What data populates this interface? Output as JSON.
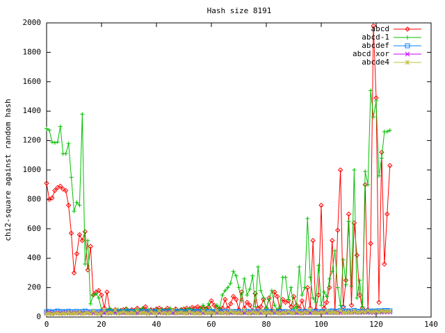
{
  "chart_data": {
    "type": "line",
    "title": "Hash size 8191",
    "y_label": "chi2-square against random hash",
    "xlim": [
      0,
      140
    ],
    "xticks": [
      0,
      20,
      40,
      60,
      80,
      100,
      120,
      140
    ],
    "ylim": [
      0,
      2000
    ],
    "yticks": [
      0,
      200,
      400,
      600,
      800,
      1000,
      1200,
      1400,
      1600,
      1800,
      2000
    ],
    "legend": "top-right",
    "x": [
      0,
      1,
      2,
      3,
      4,
      5,
      6,
      7,
      8,
      9,
      10,
      11,
      12,
      13,
      14,
      15,
      16,
      17,
      18,
      19,
      20,
      21,
      22,
      23,
      24,
      25,
      26,
      27,
      28,
      29,
      30,
      31,
      32,
      33,
      34,
      35,
      36,
      37,
      38,
      39,
      40,
      41,
      42,
      43,
      44,
      45,
      46,
      47,
      48,
      49,
      50,
      51,
      52,
      53,
      54,
      55,
      56,
      57,
      58,
      59,
      60,
      61,
      62,
      63,
      64,
      65,
      66,
      67,
      68,
      69,
      70,
      71,
      72,
      73,
      74,
      75,
      76,
      77,
      78,
      79,
      80,
      81,
      82,
      83,
      84,
      85,
      86,
      87,
      88,
      89,
      90,
      91,
      92,
      93,
      94,
      95,
      96,
      97,
      98,
      99,
      100,
      101,
      102,
      103,
      104,
      105,
      106,
      107,
      108,
      109,
      110,
      111,
      112,
      113,
      114,
      115,
      116,
      117,
      118,
      119,
      120,
      121,
      122,
      123,
      124,
      125
    ],
    "series": [
      {
        "name": "abcd",
        "color": "#ff0000",
        "marker": "diamond",
        "values": [
          910,
          800,
          810,
          860,
          880,
          890,
          870,
          860,
          760,
          570,
          300,
          430,
          560,
          520,
          580,
          320,
          480,
          150,
          170,
          180,
          150,
          60,
          170,
          50,
          40,
          50,
          40,
          45,
          50,
          55,
          40,
          50,
          45,
          60,
          45,
          55,
          70,
          40,
          50,
          45,
          55,
          60,
          50,
          45,
          60,
          50,
          45,
          55,
          40,
          50,
          55,
          60,
          50,
          65,
          60,
          70,
          60,
          65,
          55,
          70,
          110,
          80,
          60,
          55,
          60,
          120,
          60,
          90,
          140,
          120,
          50,
          170,
          60,
          100,
          80,
          40,
          160,
          60,
          70,
          120,
          60,
          130,
          40,
          170,
          140,
          50,
          120,
          100,
          110,
          70,
          140,
          80,
          60,
          110,
          40,
          200,
          60,
          520,
          50,
          150,
          760,
          60,
          100,
          200,
          520,
          40,
          590,
          1000,
          70,
          250,
          700,
          80,
          640,
          420,
          150,
          60,
          900,
          50,
          500,
          1980,
          1490,
          100,
          1120,
          360,
          700,
          1030
        ]
      },
      {
        "name": "abcd-1",
        "color": "#00c000",
        "marker": "plus",
        "values": [
          1280,
          1270,
          1190,
          1185,
          1190,
          1295,
          1110,
          1110,
          1180,
          950,
          720,
          780,
          760,
          1380,
          360,
          520,
          90,
          150,
          160,
          130,
          50,
          40,
          45,
          60,
          40,
          35,
          50,
          45,
          40,
          55,
          45,
          50,
          40,
          55,
          45,
          60,
          40,
          50,
          45,
          40,
          50,
          45,
          55,
          40,
          50,
          60,
          45,
          50,
          40,
          55,
          45,
          50,
          60,
          45,
          50,
          40,
          55,
          80,
          50,
          90,
          50,
          40,
          80,
          60,
          150,
          180,
          200,
          230,
          310,
          280,
          200,
          110,
          260,
          150,
          190,
          280,
          70,
          340,
          180,
          130,
          60,
          120,
          180,
          80,
          50,
          70,
          270,
          270,
          120,
          200,
          60,
          70,
          340,
          150,
          200,
          670,
          270,
          130,
          100,
          350,
          80,
          170,
          140,
          260,
          310,
          450,
          200,
          80,
          390,
          220,
          650,
          210,
          1000,
          130,
          250,
          70,
          990,
          900,
          1540,
          1360,
          1470,
          960,
          1080,
          1260,
          1260,
          1270
        ]
      },
      {
        "name": "abcdef",
        "color": "#0080ff",
        "marker": "square",
        "values": [
          35,
          38,
          32,
          36,
          40,
          34,
          37,
          33,
          39,
          35,
          36,
          38,
          34,
          37,
          40,
          35,
          33,
          38,
          36,
          34,
          37,
          35,
          39,
          33,
          36,
          38,
          34,
          37,
          35,
          36,
          39,
          34,
          37,
          33,
          38,
          36,
          35,
          37,
          34,
          39,
          36,
          35,
          38,
          34,
          37,
          36,
          33,
          38,
          35,
          37,
          34,
          36,
          39,
          35,
          37,
          33,
          38,
          36,
          34,
          37,
          35,
          38,
          36,
          33,
          37,
          39,
          34,
          36,
          38,
          35,
          37,
          34,
          36,
          39,
          33,
          37,
          35,
          38,
          34,
          36,
          37,
          35,
          39,
          34,
          36,
          38,
          33,
          37,
          35,
          36,
          38,
          34,
          37,
          35,
          39,
          36,
          34,
          38,
          35,
          37,
          36,
          40,
          35,
          38,
          42,
          36,
          39,
          44,
          60,
          38,
          41,
          37,
          45,
          39,
          36,
          40,
          38,
          42,
          37,
          41,
          39,
          43,
          40,
          45,
          44,
          42
        ]
      },
      {
        "name": "abcd xor",
        "color": "#c000ff",
        "marker": "cross",
        "values": [
          28,
          30,
          26,
          29,
          31,
          27,
          30,
          28,
          32,
          29,
          27,
          30,
          28,
          31,
          29,
          27,
          30,
          28,
          26,
          29,
          31,
          28,
          30,
          27,
          29,
          32,
          28,
          30,
          27,
          29,
          31,
          28,
          26,
          30,
          29,
          28,
          31,
          27,
          30,
          29,
          28,
          30,
          32,
          27,
          29,
          31,
          28,
          30,
          27,
          29,
          28,
          31,
          29,
          27,
          30,
          28,
          32,
          29,
          27,
          30,
          29,
          28,
          31,
          30,
          27,
          29,
          31,
          28,
          30,
          29,
          27,
          30,
          28,
          31,
          29,
          27,
          30,
          32,
          28,
          29,
          30,
          27,
          29,
          31,
          28,
          30,
          27,
          29,
          31,
          28,
          30,
          29,
          27,
          31,
          28,
          30,
          29,
          27,
          30,
          32,
          28,
          29,
          31,
          27,
          30,
          28,
          32,
          29,
          30,
          28,
          31,
          29,
          33,
          30,
          28,
          32,
          30,
          34,
          29,
          31,
          33,
          30,
          35,
          32,
          34,
          33
        ]
      },
      {
        "name": "abcde4",
        "color": "#c0c040",
        "marker": "star",
        "values": [
          22,
          25,
          20,
          24,
          28,
          21,
          26,
          23,
          30,
          22,
          27,
          24,
          35,
          21,
          26,
          29,
          23,
          40,
          25,
          22,
          28,
          45,
          24,
          30,
          26,
          48,
          23,
          29,
          35,
          27,
          25,
          32,
          24,
          44,
          26,
          30,
          28,
          22,
          38,
          27,
          25,
          42,
          26,
          31,
          24,
          29,
          46,
          25,
          28,
          33,
          26,
          24,
          37,
          28,
          25,
          30,
          23,
          41,
          27,
          29,
          31,
          25,
          43,
          28,
          26,
          34,
          24,
          39,
          30,
          27,
          32,
          26,
          45,
          28,
          24,
          36,
          29,
          25,
          40,
          27,
          30,
          33,
          26,
          44,
          28,
          25,
          31,
          27,
          38,
          29,
          26,
          42,
          30,
          25,
          35,
          28,
          47,
          27,
          31,
          26,
          33,
          29,
          43,
          28,
          34,
          30,
          27,
          45,
          31,
          29,
          36,
          28,
          40,
          32,
          30,
          38,
          31,
          44,
          33,
          35,
          39,
          32,
          42,
          36,
          40,
          38
        ]
      }
    ]
  }
}
